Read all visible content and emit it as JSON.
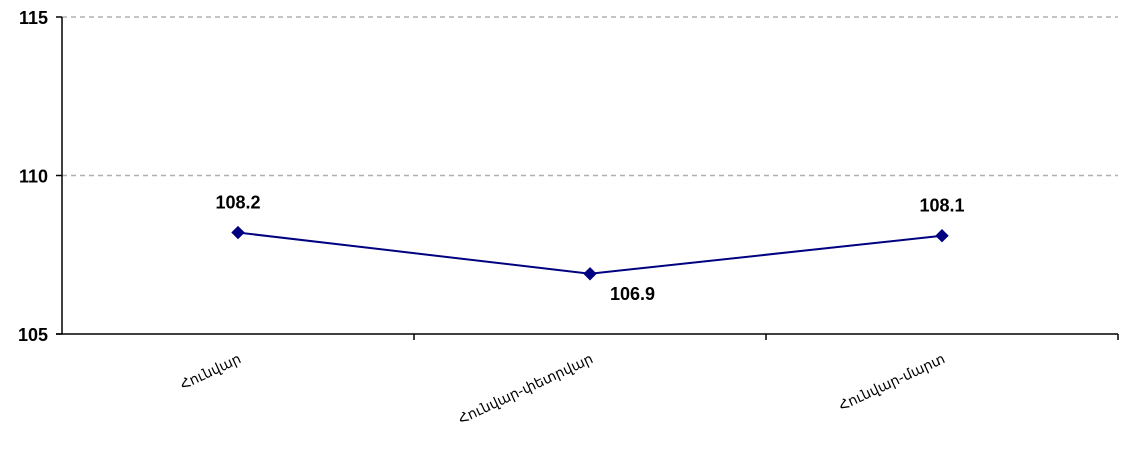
{
  "chart_data": {
    "type": "line",
    "categories": [
      "Հունվար",
      "Հունվար-փետրվար",
      "Հունվար-մարտ"
    ],
    "series": [
      {
        "values": [
          108.2,
          106.9,
          108.1
        ],
        "color": "#000080",
        "marker": "diamond"
      }
    ],
    "data_labels": [
      "108.2",
      "106.9",
      "108.1"
    ],
    "ylim": [
      105,
      115
    ],
    "yticks": [
      105,
      110,
      115
    ],
    "ytick_labels": [
      "105",
      "110",
      "115"
    ],
    "grid": "horizontal dashed",
    "grid_color": "#b0b0b0",
    "axis_color": "#000000",
    "title": "",
    "xlabel": "",
    "ylabel": ""
  }
}
